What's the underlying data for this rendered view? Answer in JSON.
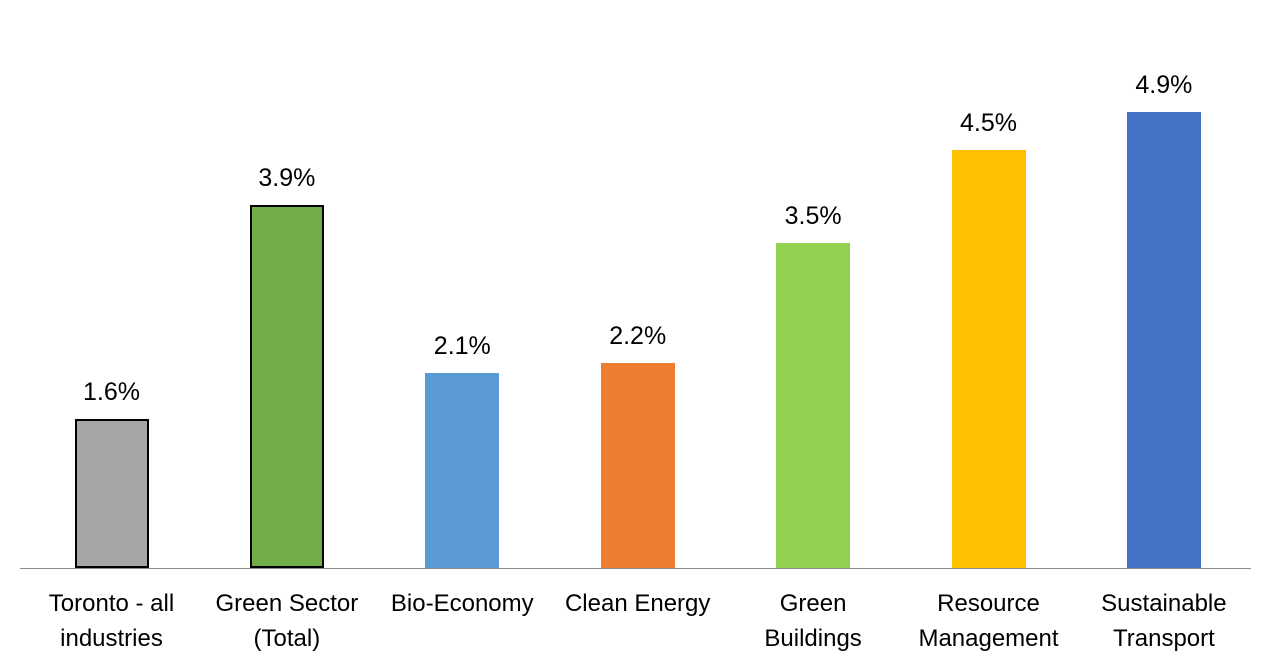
{
  "chart_data": {
    "type": "bar",
    "title": "",
    "categories": [
      "Toronto - all industries",
      "Green Sector (Total)",
      "Bio-Economy",
      "Clean Energy",
      "Green Buildings",
      "Resource Management",
      "Sustainable Transport"
    ],
    "category_lines": [
      [
        "Toronto - all",
        "industries"
      ],
      [
        "Green Sector",
        "(Total)"
      ],
      [
        "Bio-Economy"
      ],
      [
        "Clean Energy"
      ],
      [
        "Green",
        "Buildings"
      ],
      [
        "Resource",
        "Management"
      ],
      [
        "Sustainable",
        "Transport"
      ]
    ],
    "values": [
      1.6,
      3.9,
      2.1,
      2.2,
      3.5,
      4.5,
      4.9
    ],
    "data_labels": [
      "1.6%",
      "3.9%",
      "2.1%",
      "2.2%",
      "3.5%",
      "4.5%",
      "4.9%"
    ],
    "bar_colors": [
      "#a6a6a6",
      "#70ad47",
      "#5b9bd5",
      "#ed7d31",
      "#92d050",
      "#ffc000",
      "#4472c4"
    ],
    "bar_border_colors": [
      "#000000",
      "#000000",
      "none",
      "none",
      "none",
      "none",
      "none"
    ],
    "xlabel": "",
    "ylabel": "",
    "ylim": [
      0,
      5.5
    ],
    "grid": false,
    "legend": false,
    "axis_line_color": "#8c8c8c",
    "text_color": "#000000",
    "background_color": "#ffffff"
  }
}
